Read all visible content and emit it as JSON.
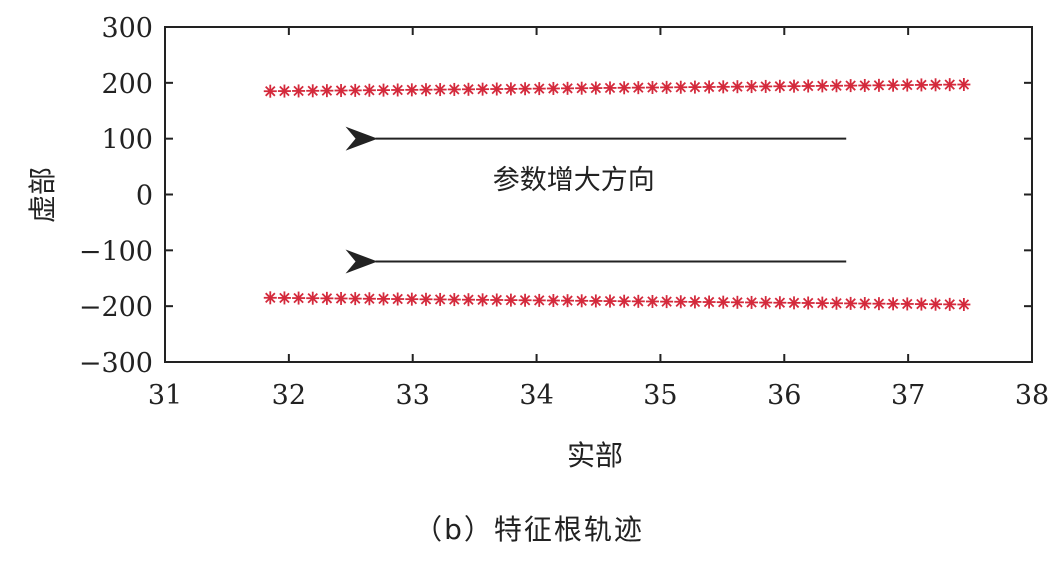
{
  "chart_data": {
    "type": "scatter",
    "xlabel": "实部",
    "ylabel": "虚部",
    "xlim": [
      31,
      38
    ],
    "ylim": [
      -300,
      300
    ],
    "xticks": [
      "31",
      "32",
      "33",
      "34",
      "35",
      "36",
      "37",
      "38"
    ],
    "yticks": [
      "300",
      "200",
      "100",
      "0",
      "−100",
      "−200",
      "−300"
    ],
    "marker": "asterisk",
    "marker_color": "#d42a3c",
    "grid": false,
    "series": [
      {
        "x_start": 31.85,
        "x_end": 37.45,
        "y_start": 185,
        "y_end": 197,
        "count": 50
      },
      {
        "x_start": 31.85,
        "x_end": 37.45,
        "y_start": -185,
        "y_end": -197,
        "count": 50
      }
    ],
    "annotations": [
      {
        "text": "",
        "arrow": {
          "from": [
            36.5,
            100
          ],
          "to": [
            32.7,
            100
          ]
        }
      },
      {
        "text": "参数增大方向",
        "position": [
          34.3,
          10
        ]
      },
      {
        "text": "",
        "arrow": {
          "from": [
            36.5,
            -120
          ],
          "to": [
            32.7,
            -120
          ]
        }
      }
    ]
  },
  "caption": "（b）特征根轨迹"
}
